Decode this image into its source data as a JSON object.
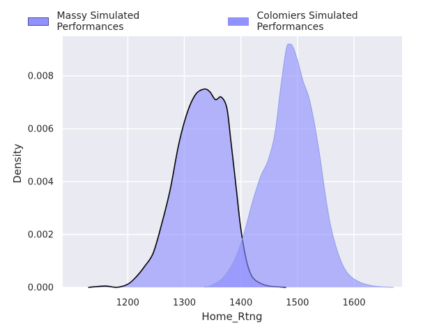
{
  "chart_data": {
    "type": "area",
    "title": "",
    "xlabel": "Home_Rtng",
    "ylabel": "Density",
    "xlim": [
      1085,
      1685
    ],
    "ylim": [
      0,
      0.0095
    ],
    "x_ticks": [
      1200,
      1300,
      1400,
      1500,
      1600
    ],
    "x_tick_labels": [
      "1200",
      "1300",
      "1400",
      "1500",
      "1600"
    ],
    "y_ticks": [
      0,
      0.002,
      0.004,
      0.006,
      0.008
    ],
    "y_tick_labels": [
      "0.000",
      "0.002",
      "0.004",
      "0.006",
      "0.008"
    ],
    "grid": true,
    "legend_position": "top",
    "series": [
      {
        "name": "Massy Simulated Performances",
        "fill_color": "#8c8cff",
        "line_color": "#000000",
        "x": [
          1130,
          1160,
          1180,
          1200,
          1215,
          1230,
          1245,
          1260,
          1275,
          1290,
          1305,
          1320,
          1335,
          1345,
          1355,
          1365,
          1375,
          1382,
          1392,
          1400,
          1410,
          1420,
          1435,
          1450,
          1465,
          1480
        ],
        "y": [
          0.0,
          5e-05,
          0.0,
          0.00012,
          0.0004,
          0.0008,
          0.0013,
          0.0024,
          0.0037,
          0.0054,
          0.0066,
          0.0073,
          0.0075,
          0.0074,
          0.0071,
          0.0072,
          0.0068,
          0.0056,
          0.0037,
          0.0022,
          0.001,
          0.0004,
          0.00015,
          5e-05,
          2e-05,
          0.0
        ]
      },
      {
        "name": "Colomiers Simulated Performances",
        "fill_color": "#8c8cff",
        "line_color": "#8aa0e6",
        "x": [
          1335,
          1350,
          1370,
          1390,
          1405,
          1420,
          1435,
          1448,
          1460,
          1470,
          1480,
          1486,
          1492,
          1500,
          1510,
          1520,
          1530,
          1540,
          1550,
          1560,
          1575,
          1590,
          1610,
          1630,
          1650,
          1670
        ],
        "y": [
          0.0,
          0.0001,
          0.0004,
          0.0011,
          0.002,
          0.0032,
          0.0042,
          0.0048,
          0.0058,
          0.0075,
          0.009,
          0.0092,
          0.0091,
          0.0086,
          0.0078,
          0.0072,
          0.0062,
          0.0049,
          0.0034,
          0.0022,
          0.0011,
          0.0005,
          0.0002,
          7e-05,
          2e-05,
          0.0
        ]
      }
    ]
  }
}
